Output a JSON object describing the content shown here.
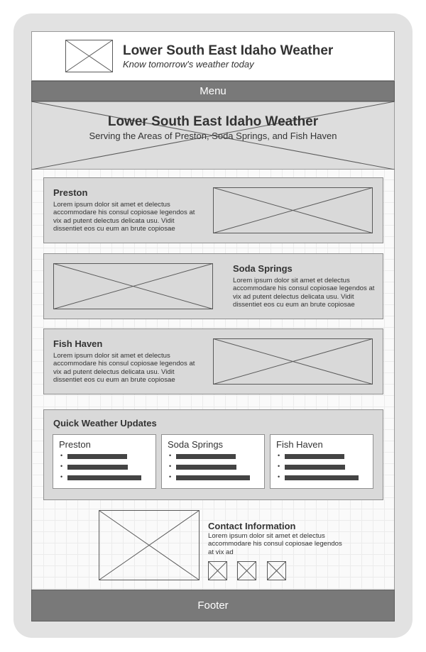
{
  "header": {
    "title": "Lower South East Idaho Weather",
    "tagline": "Know tomorrow's weather today"
  },
  "menu": {
    "label": "Menu"
  },
  "hero": {
    "title": "Lower South East Idaho Weather",
    "subtitle": "Serving the Areas of Preston, Soda Springs, and Fish Haven"
  },
  "cards": [
    {
      "title": "Preston",
      "text": "Lorem ipsum dolor sit amet et delectus accommodare his consul copiosae legendos at vix ad putent delectus delicata usu. Vidit dissentiet eos cu eum an brute copiosae"
    },
    {
      "title": "Soda Springs",
      "text": "Lorem ipsum dolor sit amet et delectus accommodare his consul copiosae legendos at vix ad putent delectus delicata usu. Vidit dissentiet eos cu eum an brute copiosae"
    },
    {
      "title": "Fish Haven",
      "text": "Lorem ipsum dolor sit amet et delectus accommodare his consul copiosae legendos at vix ad putent delectus delicata usu. Vidit dissentiet eos cu eum an brute copiosae"
    }
  ],
  "quick_updates": {
    "title": "Quick Weather Updates",
    "columns": [
      {
        "name": "Preston"
      },
      {
        "name": "Soda Springs"
      },
      {
        "name": "Fish Haven"
      }
    ]
  },
  "contact": {
    "title": "Contact Information",
    "text": "Lorem ipsum dolor sit amet et delectus accommodare his consul copiosae legendos at vix ad"
  },
  "footer": {
    "label": "Footer"
  },
  "colors": {
    "bar_gray": "#797979",
    "panel_gray": "#d9d9d9",
    "frame_gray": "#e2e2e2"
  }
}
